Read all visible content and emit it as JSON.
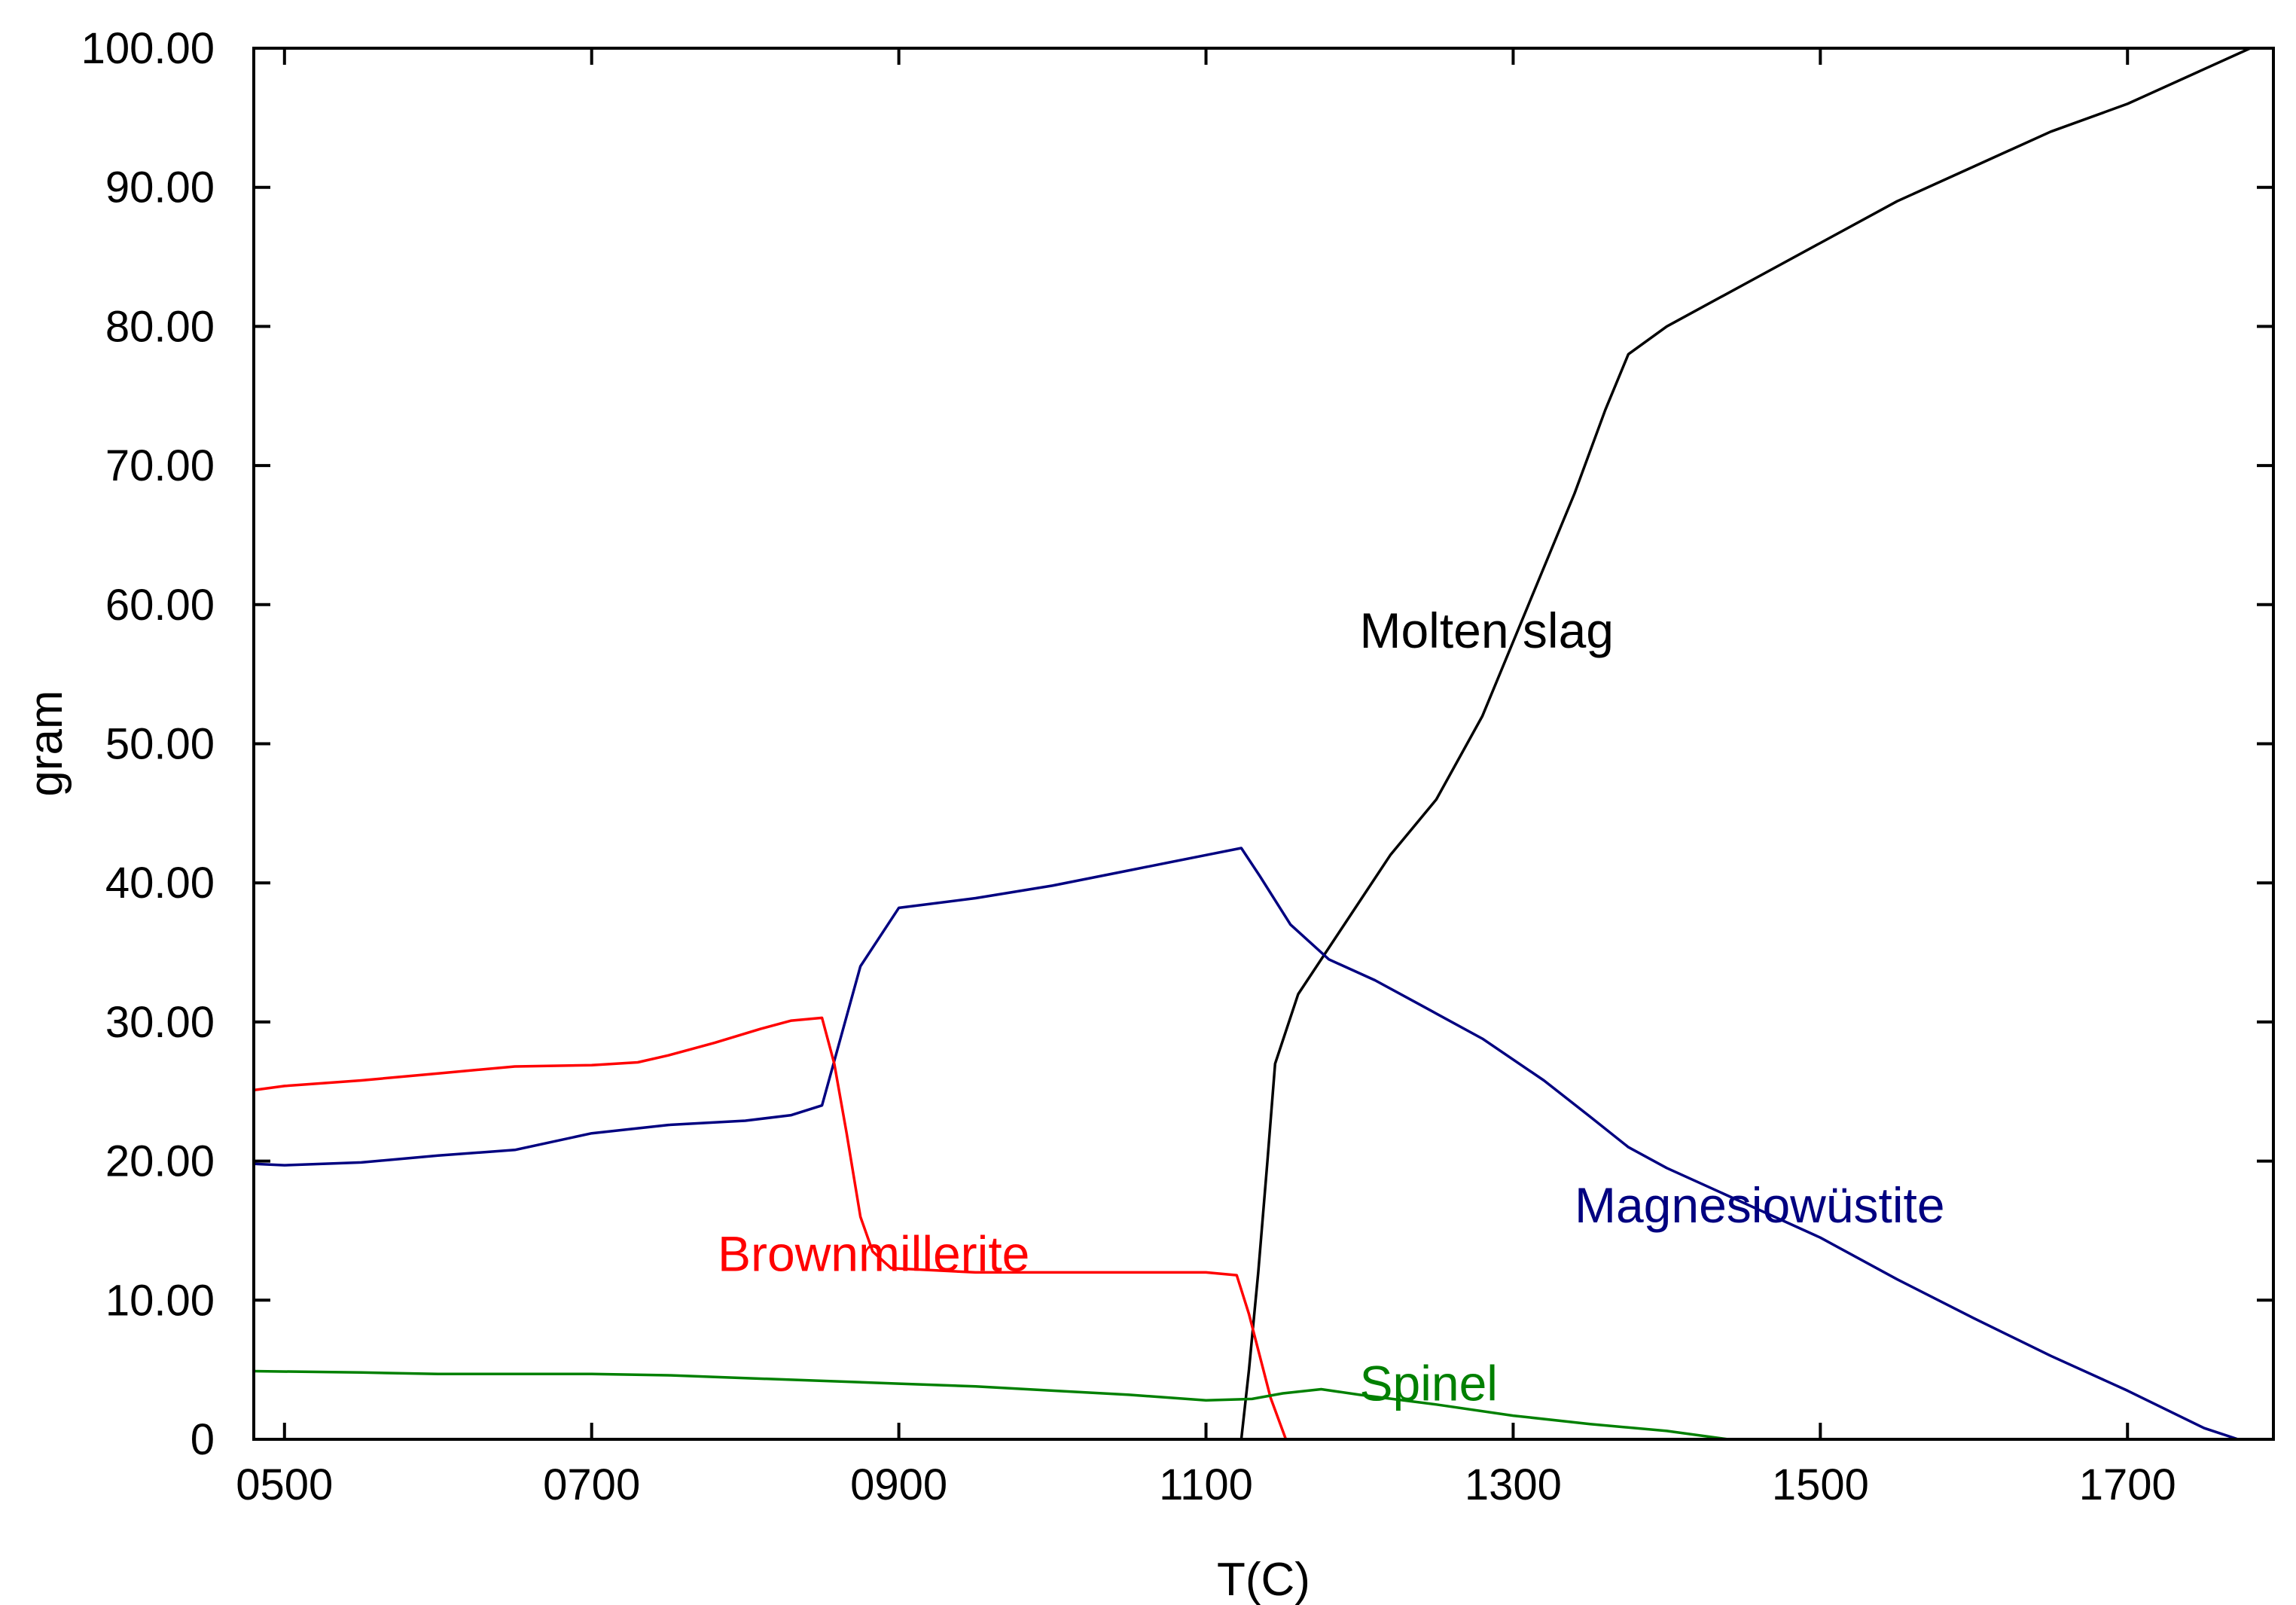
{
  "chart_data": {
    "type": "line",
    "title": "",
    "xlabel": "T(C)",
    "ylabel": "gram",
    "xlim": [
      480,
      1795
    ],
    "ylim": [
      0,
      100
    ],
    "grid": false,
    "x_ticks": [
      {
        "value": 500,
        "label": "0500"
      },
      {
        "value": 700,
        "label": "0700"
      },
      {
        "value": 900,
        "label": "0900"
      },
      {
        "value": 1100,
        "label": "1100"
      },
      {
        "value": 1300,
        "label": "1300"
      },
      {
        "value": 1500,
        "label": "1500"
      },
      {
        "value": 1700,
        "label": "1700"
      }
    ],
    "y_ticks": [
      {
        "value": 0,
        "label": "0"
      },
      {
        "value": 10,
        "label": "10.00"
      },
      {
        "value": 20,
        "label": "20.00"
      },
      {
        "value": 30,
        "label": "30.00"
      },
      {
        "value": 40,
        "label": "40.00"
      },
      {
        "value": 50,
        "label": "50.00"
      },
      {
        "value": 60,
        "label": "60.00"
      },
      {
        "value": 70,
        "label": "70.00"
      },
      {
        "value": 80,
        "label": "80.00"
      },
      {
        "value": 90,
        "label": "90.00"
      },
      {
        "value": 100,
        "label": "100.00"
      }
    ],
    "series": [
      {
        "name": "Molten slag",
        "color": "#000000",
        "label": {
          "text": "Molten slag",
          "x": 1200,
          "y": 56.9
        },
        "points": [
          [
            1123,
            0
          ],
          [
            1128,
            5
          ],
          [
            1134,
            12
          ],
          [
            1140,
            20
          ],
          [
            1145,
            27
          ],
          [
            1160,
            32
          ],
          [
            1190,
            37
          ],
          [
            1220,
            42
          ],
          [
            1250,
            46
          ],
          [
            1280,
            52
          ],
          [
            1310,
            60
          ],
          [
            1340,
            68
          ],
          [
            1360,
            74
          ],
          [
            1375,
            78
          ],
          [
            1400,
            80
          ],
          [
            1450,
            83
          ],
          [
            1500,
            86
          ],
          [
            1550,
            89
          ],
          [
            1600,
            91.5
          ],
          [
            1650,
            94
          ],
          [
            1700,
            96
          ],
          [
            1750,
            98.5
          ],
          [
            1780,
            100
          ]
        ]
      },
      {
        "name": "Magnesiowüstite",
        "color": "#000080",
        "label": {
          "text": "Magnesiowüstite",
          "x": 1340,
          "y": 15.6
        },
        "points": [
          [
            480,
            19.8
          ],
          [
            500,
            19.7
          ],
          [
            550,
            19.9
          ],
          [
            600,
            20.4
          ],
          [
            650,
            20.8
          ],
          [
            700,
            22.0
          ],
          [
            750,
            22.6
          ],
          [
            800,
            22.9
          ],
          [
            830,
            23.3
          ],
          [
            850,
            24.0
          ],
          [
            860,
            28
          ],
          [
            875,
            34
          ],
          [
            900,
            38.2
          ],
          [
            950,
            38.9
          ],
          [
            1000,
            39.8
          ],
          [
            1050,
            40.9
          ],
          [
            1100,
            42.0
          ],
          [
            1123,
            42.5
          ],
          [
            1135,
            40.5
          ],
          [
            1155,
            37
          ],
          [
            1180,
            34.5
          ],
          [
            1210,
            33
          ],
          [
            1240,
            31.2
          ],
          [
            1280,
            28.8
          ],
          [
            1320,
            25.8
          ],
          [
            1350,
            23.2
          ],
          [
            1375,
            21.0
          ],
          [
            1400,
            19.5
          ],
          [
            1450,
            17.0
          ],
          [
            1500,
            14.5
          ],
          [
            1550,
            11.5
          ],
          [
            1600,
            8.7
          ],
          [
            1650,
            6.0
          ],
          [
            1700,
            3.5
          ],
          [
            1750,
            0.8
          ],
          [
            1772,
            0
          ],
          [
            1790,
            0
          ]
        ]
      },
      {
        "name": "Brownmillerite",
        "color": "#ff0000",
        "label": {
          "text": "Brownmillerite",
          "x": 782,
          "y": 12.1
        },
        "points": [
          [
            480,
            25.1
          ],
          [
            500,
            25.4
          ],
          [
            550,
            25.8
          ],
          [
            600,
            26.3
          ],
          [
            650,
            26.8
          ],
          [
            700,
            26.9
          ],
          [
            730,
            27.1
          ],
          [
            750,
            27.6
          ],
          [
            780,
            28.5
          ],
          [
            810,
            29.5
          ],
          [
            830,
            30.1
          ],
          [
            850,
            30.3
          ],
          [
            858,
            27
          ],
          [
            866,
            22
          ],
          [
            875,
            16
          ],
          [
            883,
            13.5
          ],
          [
            895,
            12.3
          ],
          [
            950,
            12.0
          ],
          [
            1000,
            12.0
          ],
          [
            1050,
            12.0
          ],
          [
            1100,
            12.0
          ],
          [
            1120,
            11.8
          ],
          [
            1128,
            9
          ],
          [
            1135,
            6
          ],
          [
            1142,
            3
          ],
          [
            1152,
            0
          ]
        ]
      },
      {
        "name": "Spinel",
        "color": "#008000",
        "label": {
          "text": "Spinel",
          "x": 1200,
          "y": 2.8
        },
        "points": [
          [
            480,
            4.9
          ],
          [
            550,
            4.8
          ],
          [
            600,
            4.7
          ],
          [
            650,
            4.7
          ],
          [
            700,
            4.7
          ],
          [
            750,
            4.6
          ],
          [
            800,
            4.4
          ],
          [
            850,
            4.2
          ],
          [
            900,
            4.0
          ],
          [
            950,
            3.8
          ],
          [
            1000,
            3.5
          ],
          [
            1050,
            3.2
          ],
          [
            1100,
            2.8
          ],
          [
            1130,
            2.9
          ],
          [
            1150,
            3.3
          ],
          [
            1175,
            3.6
          ],
          [
            1200,
            3.2
          ],
          [
            1250,
            2.5
          ],
          [
            1300,
            1.7
          ],
          [
            1350,
            1.1
          ],
          [
            1400,
            0.6
          ],
          [
            1440,
            0.0
          ]
        ]
      }
    ]
  }
}
